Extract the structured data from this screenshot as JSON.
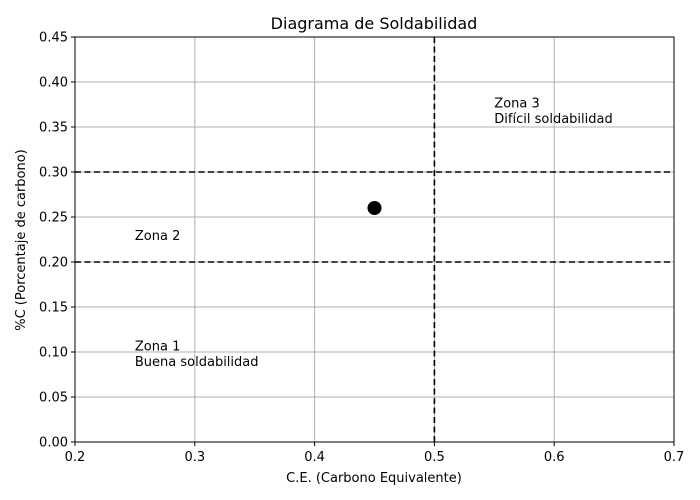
{
  "chart_data": {
    "type": "scatter",
    "title": "Diagrama de Soldabilidad",
    "xlabel": "C.E. (Carbono Equivalente)",
    "ylabel": "%C (Porcentaje de carbono)",
    "xlim": [
      0.2,
      0.7
    ],
    "ylim": [
      0.0,
      0.45
    ],
    "xticks": [
      0.2,
      0.3,
      0.4,
      0.5,
      0.6,
      0.7
    ],
    "xtick_labels": [
      "0.2",
      "0.3",
      "0.4",
      "0.5",
      "0.6",
      "0.7"
    ],
    "yticks": [
      0.0,
      0.05,
      0.1,
      0.15,
      0.2,
      0.25,
      0.3,
      0.35,
      0.4,
      0.45
    ],
    "ytick_labels": [
      "0.00",
      "0.05",
      "0.10",
      "0.15",
      "0.20",
      "0.25",
      "0.30",
      "0.35",
      "0.40",
      "0.45"
    ],
    "grid": true,
    "points": [
      {
        "x": 0.45,
        "y": 0.26,
        "color": "#000000"
      }
    ],
    "reference_lines": [
      {
        "orientation": "horizontal",
        "value": 0.2,
        "style": "dashed",
        "color": "#000000"
      },
      {
        "orientation": "horizontal",
        "value": 0.3,
        "style": "dashed",
        "color": "#000000"
      },
      {
        "orientation": "vertical",
        "value": 0.5,
        "style": "dashed",
        "color": "#000000"
      }
    ],
    "annotations": [
      {
        "name": "zone-1-label",
        "x": 0.25,
        "y": 0.08,
        "lines": [
          "Zona 1",
          "Buena soldabilidad"
        ]
      },
      {
        "name": "zone-2-label",
        "x": 0.25,
        "y": 0.22,
        "lines": [
          "Zona 2"
        ]
      },
      {
        "name": "zone-3-label",
        "x": 0.55,
        "y": 0.35,
        "lines": [
          "Zona 3",
          "Difícil soldabilidad"
        ]
      }
    ]
  }
}
